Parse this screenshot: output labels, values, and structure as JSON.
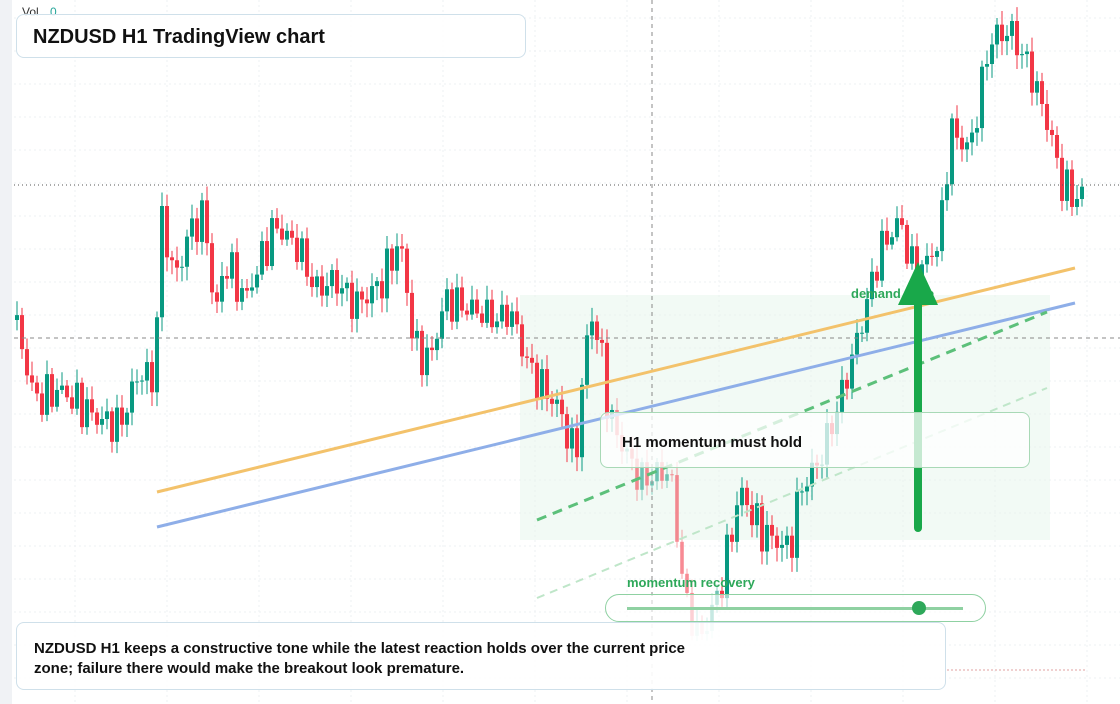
{
  "header": {
    "vol_label": "Vol",
    "vol_value": "0",
    "title": "NZDUSD H1 TradingView chart"
  },
  "annotations": {
    "zone": "demand zone",
    "callout": "H1 momentum must hold",
    "slider": "momentum recovery"
  },
  "note": "NZDUSD H1 keeps a constructive tone while the latest reaction holds over the current price zone; failure there would make the breakout look premature."
}
